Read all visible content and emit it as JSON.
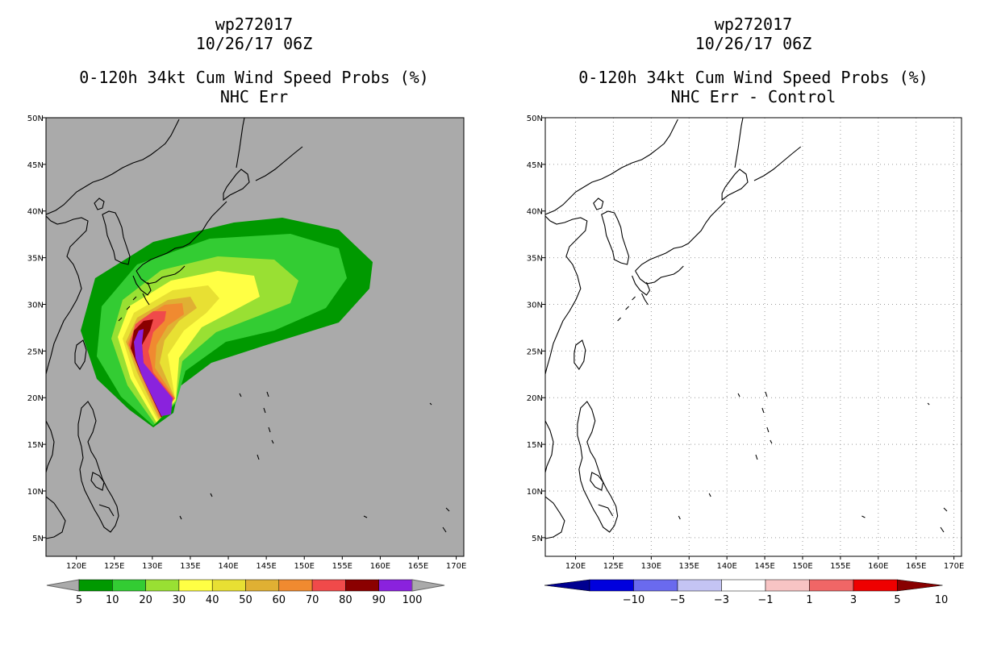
{
  "left_panel": {
    "storm_id": "wp272017",
    "datetime": "10/26/17 06Z",
    "product": "0-120h 34kt Cum Wind Speed Probs (%)",
    "subtitle": "NHC Err",
    "background_color": "#aaaaaa"
  },
  "right_panel": {
    "storm_id": "wp272017",
    "datetime": "10/26/17 06Z",
    "product": "0-120h 34kt Cum Wind Speed Probs (%)",
    "subtitle": "NHC Err - Control",
    "background_color": "#ffffff"
  },
  "map": {
    "lat_ticks": [
      "50N",
      "45N",
      "40N",
      "35N",
      "30N",
      "25N",
      "20N",
      "15N",
      "10N",
      "5N"
    ],
    "lon_ticks": [
      "120E",
      "125E",
      "130E",
      "135E",
      "140E",
      "145E",
      "150E",
      "155E",
      "160E",
      "165E",
      "170E"
    ],
    "lat_range": [
      3,
      50
    ],
    "lon_range": [
      116,
      171
    ]
  },
  "left_colorbar": {
    "labels": [
      "5",
      "10",
      "20",
      "30",
      "40",
      "50",
      "60",
      "70",
      "80",
      "90",
      "100"
    ],
    "colors": [
      "#009900",
      "#33cc33",
      "#99e033",
      "#ffff44",
      "#e8e033",
      "#e0b033",
      "#f08a30",
      "#f04a4a",
      "#8b0000",
      "#8a22dd"
    ],
    "end_color": "#aaaaaa"
  },
  "right_colorbar": {
    "labels": [
      "-10",
      "-5",
      "-3",
      "-1",
      "1",
      "3",
      "5",
      "10"
    ],
    "colors": [
      "#0000dd",
      "#6a6aee",
      "#c4c4f4",
      "#ffffff",
      "#f8c4c4",
      "#f06666",
      "#ee0000"
    ],
    "low_end_color": "#000090",
    "high_end_color": "#880000"
  }
}
